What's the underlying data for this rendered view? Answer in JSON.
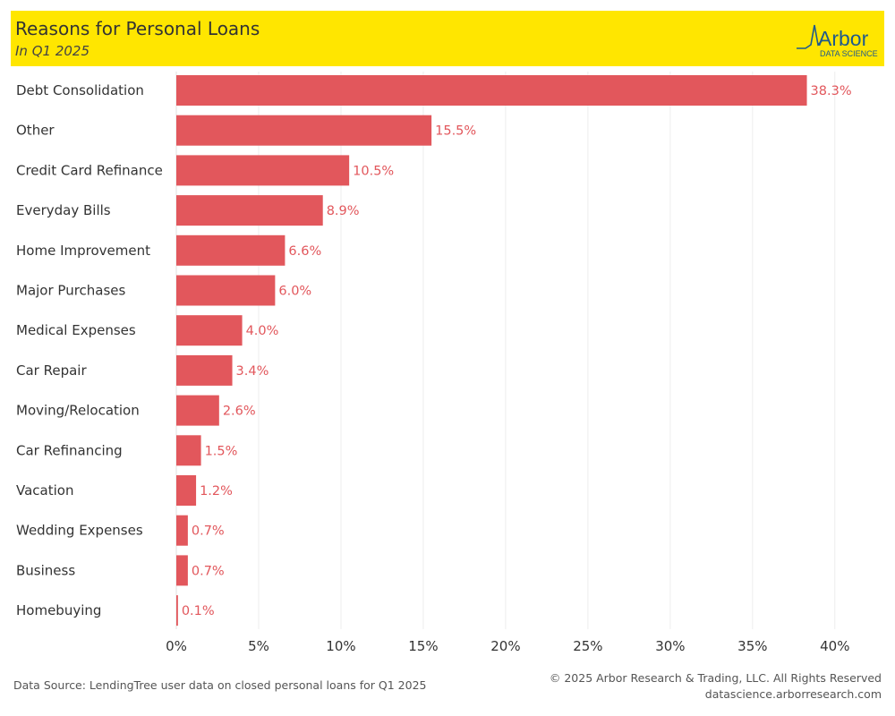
{
  "header": {
    "title": "Reasons for Personal Loans",
    "subtitle": "In Q1 2025",
    "background": "#FFE600",
    "logo": {
      "name": "Arbor",
      "tagline": "DATA SCIENCE",
      "color": "#1F5A8C"
    }
  },
  "chart_data": {
    "type": "bar",
    "orientation": "horizontal",
    "categories": [
      "Debt Consolidation",
      "Other",
      "Credit Card Refinance",
      "Everyday Bills",
      "Home Improvement",
      "Major Purchases",
      "Medical Expenses",
      "Car Repair",
      "Moving/Relocation",
      "Car Refinancing",
      "Vacation",
      "Wedding Expenses",
      "Business",
      "Homebuying"
    ],
    "values": [
      38.3,
      15.5,
      10.5,
      8.9,
      6.6,
      6.0,
      4.0,
      3.4,
      2.6,
      1.5,
      1.2,
      0.7,
      0.7,
      0.1
    ],
    "data_labels": [
      "38.3%",
      "15.5%",
      "10.5%",
      "8.9%",
      "6.6%",
      "6.0%",
      "4.0%",
      "3.4%",
      "2.6%",
      "1.5%",
      "1.2%",
      "0.7%",
      "0.7%",
      "0.1%"
    ],
    "x_ticks": [
      0,
      5,
      10,
      15,
      20,
      25,
      30,
      35,
      40
    ],
    "x_tick_labels": [
      "0%",
      "5%",
      "10%",
      "15%",
      "20%",
      "25%",
      "30%",
      "35%",
      "40%"
    ],
    "xlim": [
      0,
      43
    ],
    "xlabel": "",
    "ylabel": "",
    "grid": true,
    "bar_color": "#E2575C",
    "label_color": "#E2575C"
  },
  "footer": {
    "source": "Data Source: LendingTree user data on closed personal loans for Q1 2025",
    "copyright": "© 2025 Arbor Research & Trading, LLC. All Rights Reserved",
    "website": "datascience.arborresearch.com"
  }
}
